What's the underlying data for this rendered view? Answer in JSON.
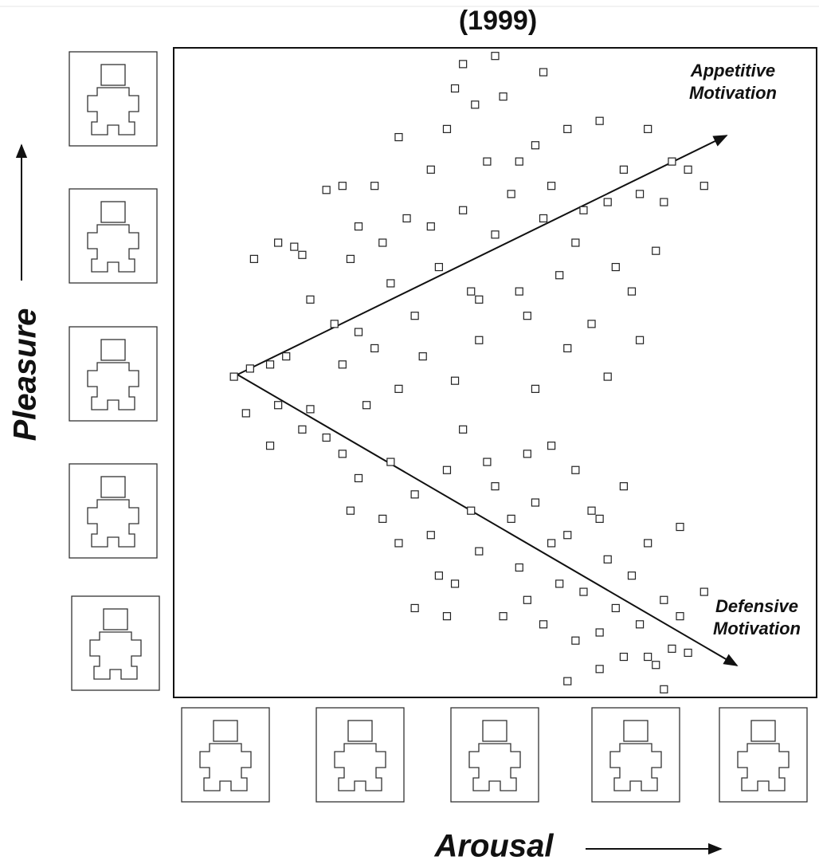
{
  "chart_data": {
    "type": "scatter",
    "title": "(1999)",
    "xlabel": "Arousal",
    "ylabel": "Pleasure",
    "annotations": [
      [
        "Appetitive",
        "Motivation"
      ],
      [
        "Defensive",
        "Motivation"
      ]
    ],
    "marker": "square",
    "color": "#222222",
    "xlim": [
      1,
      9
    ],
    "ylim": [
      1,
      9
    ],
    "x": [
      1.75,
      1.95,
      2.2,
      2.4,
      2.3,
      2.5,
      2.6,
      2.9,
      3.1,
      3.2,
      3.0,
      3.3,
      3.5,
      3.5,
      3.6,
      3.7,
      3.8,
      3.9,
      4.0,
      4.1,
      4.2,
      4.3,
      4.4,
      4.5,
      4.6,
      4.7,
      4.75,
      4.8,
      4.9,
      5.0,
      5.1,
      5.2,
      5.3,
      5.4,
      5.5,
      5.6,
      5.7,
      5.8,
      5.9,
      6.0,
      6.1,
      6.2,
      6.3,
      6.4,
      6.5,
      6.6,
      6.7,
      6.8,
      6.9,
      7.0,
      7.1,
      7.2,
      7.4,
      5.0,
      5.6,
      4.6,
      3.3,
      2.7,
      3.8,
      4.5,
      5.5,
      6.4,
      6.8,
      5.9,
      4.8,
      3.1,
      2.0,
      7.6,
      4.2,
      5.3,
      1.9,
      2.3,
      2.6,
      2.2,
      2.7,
      3.1,
      3.4,
      3.7,
      3.6,
      4.0,
      4.2,
      4.4,
      4.3,
      4.5,
      4.7,
      4.8,
      5.0,
      5.1,
      5.2,
      5.3,
      5.4,
      5.5,
      5.6,
      5.7,
      5.8,
      5.9,
      6.0,
      6.1,
      6.2,
      6.3,
      6.4,
      6.5,
      6.6,
      6.7,
      6.8,
      6.9,
      7.0,
      7.1,
      7.2,
      7.3,
      7.4,
      7.1,
      6.9,
      6.3,
      5.9,
      4.4,
      4.0,
      3.8,
      3.2,
      4.9,
      5.4,
      6.0,
      6.6,
      7.3,
      7.6,
      2.9,
      3.3,
      4.6,
      5.7,
      6.3
    ],
    "y": [
      4.95,
      5.05,
      5.1,
      5.2,
      6.6,
      6.55,
      6.45,
      7.25,
      7.3,
      6.4,
      5.6,
      5.5,
      5.3,
      7.3,
      6.6,
      6.1,
      7.9,
      6.9,
      5.7,
      5.2,
      7.5,
      6.3,
      8.0,
      8.5,
      7.0,
      6.0,
      8.3,
      5.4,
      7.6,
      6.7,
      8.4,
      7.2,
      6.0,
      5.7,
      7.8,
      6.9,
      7.3,
      6.2,
      8.0,
      6.6,
      7.0,
      5.6,
      8.1,
      7.1,
      6.3,
      7.5,
      6.0,
      7.2,
      8.0,
      6.5,
      7.1,
      7.6,
      7.5,
      8.9,
      8.7,
      8.8,
      6.8,
      5.9,
      4.8,
      4.9,
      4.8,
      4.95,
      5.4,
      5.3,
      5.9,
      5.1,
      6.4,
      7.3,
      6.8,
      7.6,
      4.5,
      4.6,
      4.3,
      4.1,
      4.55,
      4.0,
      4.6,
      3.9,
      3.2,
      3.5,
      3.0,
      3.8,
      2.5,
      2.4,
      3.3,
      2.8,
      3.6,
      2.0,
      3.2,
      2.6,
      2.2,
      3.4,
      1.9,
      2.9,
      2.4,
      3.0,
      1.7,
      2.3,
      3.3,
      1.8,
      2.7,
      2.1,
      1.5,
      2.5,
      1.9,
      2.9,
      1.4,
      2.2,
      1.6,
      2.0,
      1.55,
      1.1,
      1.5,
      1.35,
      1.2,
      2.0,
      2.1,
      2.9,
      3.3,
      3.9,
      4.0,
      3.8,
      3.6,
      3.1,
      2.3,
      4.2,
      3.7,
      4.3,
      4.1,
      3.2
    ]
  }
}
